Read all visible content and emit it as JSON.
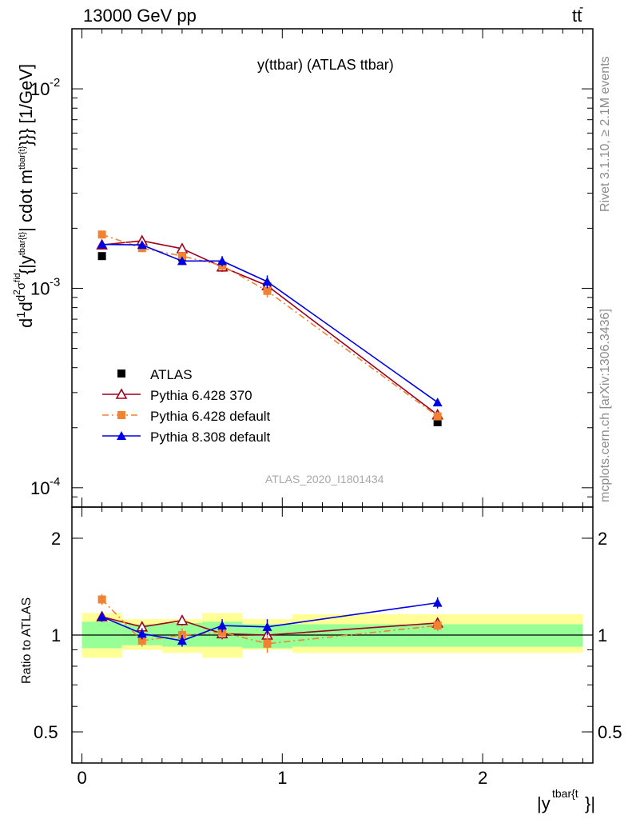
{
  "header": {
    "left": "13000 GeV pp",
    "right_main": "tt",
    "right_bar": "-"
  },
  "title": "y(ttbar) (ATLAS ttbar)",
  "side_labels": {
    "rivet": "Rivet 3.1.10, ≥ 2.1M events",
    "mcplots": "mcplots.cern.ch [arXiv:1306.3436]"
  },
  "watermark": "ATLAS_2020_I1801434",
  "ylabel_main": "d1/σdd²σ^fid/d²{|y^tbar{t}|} cdot m^tbar{t}}}} [1/GeV]",
  "ylabel_ratio": "Ratio to ATLAS",
  "xlabel": "|y^tbar{t}}|",
  "legend": [
    {
      "label": "ATLAS",
      "color": "#000000",
      "marker": "square-filled"
    },
    {
      "label": "Pythia 6.428 370",
      "color": "#a0001e",
      "marker": "triangle-open"
    },
    {
      "label": "Pythia 6.428 default",
      "color": "#f08232",
      "marker": "square-filled",
      "dash": "dashdot"
    },
    {
      "label": "Pythia 8.308 default",
      "color": "#0000e6",
      "marker": "triangle-filled"
    }
  ],
  "chart_data": [
    {
      "type": "scatter",
      "panel": "main",
      "x_bins": [
        [
          0,
          0.2
        ],
        [
          0.2,
          0.4
        ],
        [
          0.4,
          0.6
        ],
        [
          0.6,
          0.8
        ],
        [
          0.8,
          1.05
        ],
        [
          1.05,
          2.5
        ]
      ],
      "x": [
        0.1,
        0.3,
        0.5,
        0.7,
        0.925,
        1.775
      ],
      "xlim": [
        -0.05,
        2.55
      ],
      "ylim": [
        8e-05,
        0.02
      ],
      "yscale": "log",
      "y_ticks": [
        "10^-4",
        "10^-3",
        "10^-2"
      ],
      "x_ticks": [
        "0",
        "1",
        "2"
      ],
      "series": [
        {
          "name": "ATLAS",
          "values": [
            0.00145,
            0.00165,
            0.00143,
            0.00127,
            0.00102,
            0.000213
          ]
        },
        {
          "name": "Pythia 6.428 370",
          "values": [
            0.00165,
            0.00173,
            0.00158,
            0.00128,
            0.00103,
            0.000232
          ],
          "err": [
            7e-05,
            7e-05,
            7e-05,
            7e-05,
            6e-05,
            1e-05
          ]
        },
        {
          "name": "Pythia 6.428 default",
          "values": [
            0.00186,
            0.00159,
            0.00145,
            0.0013,
            0.00097,
            0.000228
          ],
          "err": [
            8e-05,
            7e-05,
            7e-05,
            7e-05,
            7e-05,
            1e-05
          ]
        },
        {
          "name": "Pythia 8.308 default",
          "values": [
            0.00166,
            0.00165,
            0.00137,
            0.00137,
            0.00108,
            0.000268
          ],
          "err": [
            7e-05,
            7e-05,
            6e-05,
            8e-05,
            8e-05,
            1e-05
          ]
        }
      ]
    },
    {
      "type": "scatter",
      "panel": "ratio",
      "ylabel": "Ratio to ATLAS",
      "xlabel": "|y^tbar{t}}|",
      "ylim": [
        0.4,
        2.5
      ],
      "yscale": "log",
      "y_ticks": [
        "0.5",
        "1",
        "2"
      ],
      "x_ticks": [
        "0",
        "1",
        "2"
      ],
      "x": [
        0.1,
        0.3,
        0.5,
        0.7,
        0.925,
        1.775
      ],
      "band_inner": [
        [
          0.91,
          1.1
        ],
        [
          0.93,
          1.08
        ],
        [
          0.92,
          1.09
        ],
        [
          0.92,
          1.1
        ],
        [
          0.91,
          1.08
        ],
        [
          0.92,
          1.08
        ]
      ],
      "band_outer": [
        [
          0.85,
          1.17
        ],
        [
          0.9,
          1.12
        ],
        [
          0.88,
          1.12
        ],
        [
          0.85,
          1.17
        ],
        [
          0.9,
          1.12
        ],
        [
          0.88,
          1.16
        ]
      ],
      "series": [
        {
          "name": "Pythia 6.428 370",
          "values": [
            1.14,
            1.06,
            1.11,
            1.01,
            1.0,
            1.09
          ],
          "err": [
            0.04,
            0.04,
            0.04,
            0.04,
            0.05,
            0.04
          ]
        },
        {
          "name": "Pythia 6.428 default",
          "values": [
            1.29,
            0.96,
            1.0,
            1.02,
            0.94,
            1.07
          ],
          "err": [
            0.05,
            0.04,
            0.05,
            0.04,
            0.06,
            0.04
          ]
        },
        {
          "name": "Pythia 8.308 default",
          "values": [
            1.14,
            1.01,
            0.96,
            1.07,
            1.06,
            1.26
          ],
          "err": [
            0.04,
            0.04,
            0.04,
            0.05,
            0.06,
            0.05
          ]
        }
      ]
    }
  ]
}
